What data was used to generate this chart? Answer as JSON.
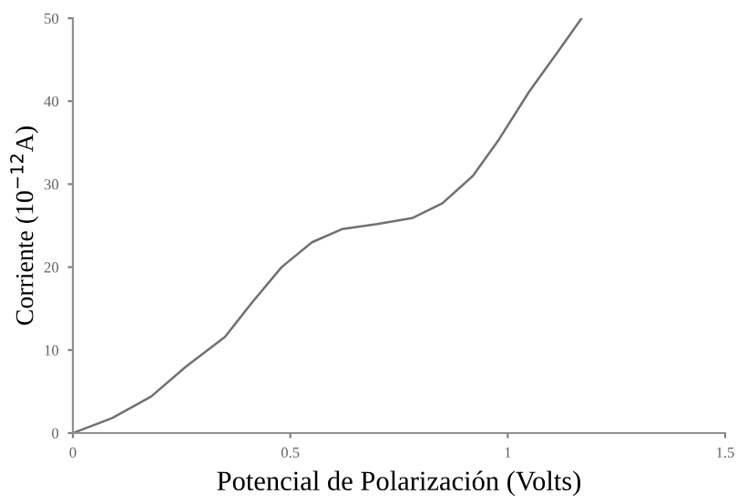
{
  "chart_data": {
    "type": "line",
    "xlabel": "Potencial de Polarización (Volts)",
    "ylabel": "Corriente (10$^{−12}$A)",
    "x": [
      0,
      0.09,
      0.18,
      0.26,
      0.35,
      0.41,
      0.48,
      0.55,
      0.62,
      0.7,
      0.78,
      0.85,
      0.92,
      0.98,
      1.05,
      1.12,
      1.17
    ],
    "series": [
      {
        "color": "#707070",
        "values": [
          0,
          1.8,
          4.4,
          8,
          11.6,
          15.6,
          20,
          23,
          24.6,
          25.2,
          25.9,
          27.7,
          31,
          35.4,
          41.2,
          46.3,
          50
        ]
      }
    ],
    "xlim": [
      0,
      1.5
    ],
    "ylim": [
      0,
      50
    ],
    "xticks": [
      0,
      0.5,
      1,
      1.5
    ],
    "yticks": [
      0,
      10,
      20,
      30,
      40,
      50
    ],
    "grid": false,
    "legend": false,
    "marker": "none",
    "line_style": "solid"
  }
}
